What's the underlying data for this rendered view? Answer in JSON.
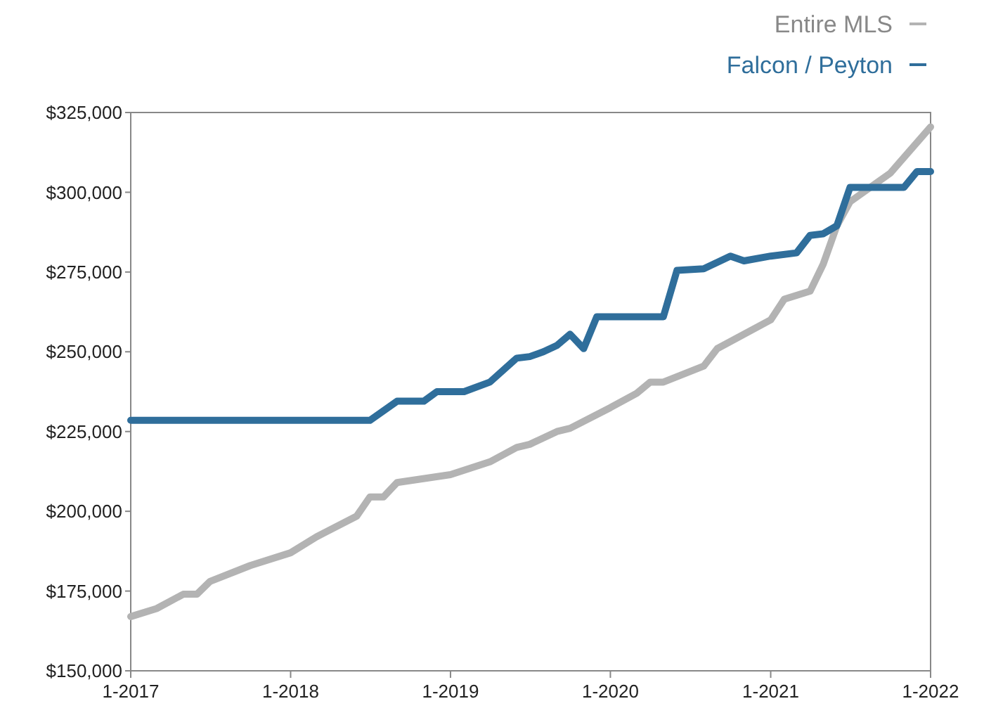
{
  "chart_data": {
    "type": "line",
    "legend": "top right",
    "xlim": [
      "2017-01",
      "2022-01"
    ],
    "xticks": [
      {
        "value": "2017-01",
        "label": "1-2017"
      },
      {
        "value": "2018-01",
        "label": "1-2018"
      },
      {
        "value": "2019-01",
        "label": "1-2019"
      },
      {
        "value": "2020-01",
        "label": "1-2020"
      },
      {
        "value": "2021-01",
        "label": "1-2021"
      },
      {
        "value": "2022-01",
        "label": "1-2022"
      }
    ],
    "ylim": [
      150000,
      325000
    ],
    "yticks": [
      {
        "value": 150000,
        "label": "$150,000"
      },
      {
        "value": 175000,
        "label": "$175,000"
      },
      {
        "value": 200000,
        "label": "$200,000"
      },
      {
        "value": 225000,
        "label": "$225,000"
      },
      {
        "value": 250000,
        "label": "$250,000"
      },
      {
        "value": 275000,
        "label": "$275,000"
      },
      {
        "value": 300000,
        "label": "$300,000"
      },
      {
        "value": 325000,
        "label": "$325,000"
      }
    ],
    "series": [
      {
        "name": "Entire MLS",
        "color": "#b3b3b3",
        "x": [
          "2017-01",
          "2017-03",
          "2017-05",
          "2017-06",
          "2017-07",
          "2017-10",
          "2018-01",
          "2018-03",
          "2018-06",
          "2018-07",
          "2018-08",
          "2018-09",
          "2019-01",
          "2019-04",
          "2019-06",
          "2019-07",
          "2019-09",
          "2019-10",
          "2020-01",
          "2020-03",
          "2020-04",
          "2020-05",
          "2020-08",
          "2020-09",
          "2021-01",
          "2021-02",
          "2021-04",
          "2021-05",
          "2021-06",
          "2021-07",
          "2021-10",
          "2022-01"
        ],
        "values": [
          167000,
          169500,
          174000,
          174000,
          178000,
          183000,
          187000,
          192000,
          198500,
          204500,
          204500,
          209000,
          211500,
          215500,
          220000,
          221000,
          225000,
          226000,
          232500,
          237000,
          240500,
          240500,
          245500,
          251000,
          260000,
          266500,
          269000,
          277500,
          289500,
          297000,
          306000,
          320500
        ]
      },
      {
        "name": "Falcon / Peyton",
        "color": "#2f6e9b",
        "x": [
          "2017-01",
          "2018-07",
          "2018-09",
          "2018-11",
          "2018-12",
          "2019-02",
          "2019-04",
          "2019-06",
          "2019-07",
          "2019-08",
          "2019-09",
          "2019-10",
          "2019-11",
          "2019-12",
          "2020-05",
          "2020-06",
          "2020-08",
          "2020-10",
          "2020-11",
          "2021-01",
          "2021-03",
          "2021-04",
          "2021-05",
          "2021-06",
          "2021-07",
          "2021-11",
          "2021-12",
          "2022-01"
        ],
        "values": [
          228500,
          228500,
          234500,
          234500,
          237500,
          237500,
          240500,
          248000,
          248500,
          250000,
          252000,
          255500,
          251000,
          261000,
          261000,
          275500,
          276000,
          280000,
          278500,
          280000,
          281000,
          286500,
          287000,
          289500,
          301500,
          301500,
          306500,
          306500
        ]
      }
    ]
  }
}
